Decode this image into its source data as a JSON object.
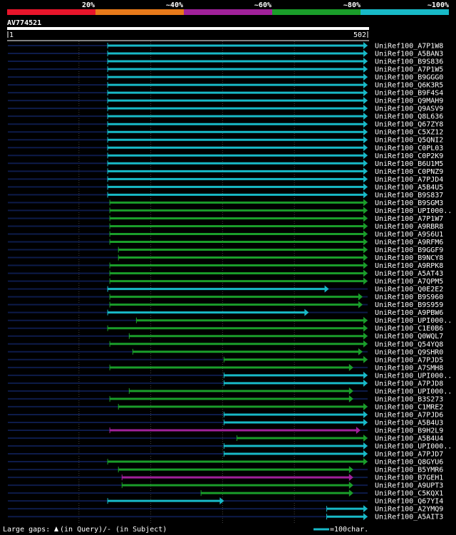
{
  "header": {
    "scale_labels": [
      "20%",
      "~40%",
      "~60%",
      "~80%",
      "~100%"
    ],
    "scale_colors": [
      "#e8152b",
      "#e87a1a",
      "#a0219a",
      "#1a9d2a",
      "#18b9c7"
    ],
    "query_name": "AV774521",
    "ruler_start": "1",
    "ruler_end": "502"
  },
  "query_length": 502,
  "hits": [
    {
      "name": "UniRef100_A7P1W8",
      "color": "#18b9c7",
      "start": 140,
      "end": 502
    },
    {
      "name": "UniRef100_A5BAN3",
      "color": "#18b9c7",
      "start": 140,
      "end": 502
    },
    {
      "name": "UniRef100_B9S836",
      "color": "#18b9c7",
      "start": 140,
      "end": 502
    },
    {
      "name": "UniRef100_A7P1W5",
      "color": "#18b9c7",
      "start": 140,
      "end": 502
    },
    {
      "name": "UniRef100_B9GGG0",
      "color": "#18b9c7",
      "start": 140,
      "end": 502
    },
    {
      "name": "UniRef100_Q6K3R5",
      "color": "#18b9c7",
      "start": 140,
      "end": 502
    },
    {
      "name": "UniRef100_B9F4S4",
      "color": "#18b9c7",
      "start": 140,
      "end": 502
    },
    {
      "name": "UniRef100_Q9MAH9",
      "color": "#18b9c7",
      "start": 140,
      "end": 502
    },
    {
      "name": "UniRef100_Q9ASV9",
      "color": "#18b9c7",
      "start": 140,
      "end": 502
    },
    {
      "name": "UniRef100_Q8L636",
      "color": "#18b9c7",
      "start": 140,
      "end": 502
    },
    {
      "name": "UniRef100_Q67ZY8",
      "color": "#18b9c7",
      "start": 140,
      "end": 502
    },
    {
      "name": "UniRef100_C5XZ12",
      "color": "#18b9c7",
      "start": 140,
      "end": 502
    },
    {
      "name": "UniRef100_Q5QNI2",
      "color": "#18b9c7",
      "start": 140,
      "end": 502
    },
    {
      "name": "UniRef100_C0PL03",
      "color": "#18b9c7",
      "start": 140,
      "end": 502
    },
    {
      "name": "UniRef100_C0P2K9",
      "color": "#18b9c7",
      "start": 140,
      "end": 502
    },
    {
      "name": "UniRef100_B6U1M5",
      "color": "#18b9c7",
      "start": 140,
      "end": 502
    },
    {
      "name": "UniRef100_C0PNZ9",
      "color": "#18b9c7",
      "start": 140,
      "end": 502
    },
    {
      "name": "UniRef100_A7PJD4",
      "color": "#18b9c7",
      "start": 140,
      "end": 502
    },
    {
      "name": "UniRef100_A5B4U5",
      "color": "#18b9c7",
      "start": 140,
      "end": 502
    },
    {
      "name": "UniRef100_B9S837",
      "color": "#18b9c7",
      "start": 140,
      "end": 502
    },
    {
      "name": "UniRef100_B9SGM3",
      "color": "#1a9d2a",
      "start": 143,
      "end": 502
    },
    {
      "name": "UniRef100_UPI000..",
      "color": "#1a9d2a",
      "start": 143,
      "end": 502
    },
    {
      "name": "UniRef100_A7P1W7",
      "color": "#1a9d2a",
      "start": 143,
      "end": 502
    },
    {
      "name": "UniRef100_A9RBR8",
      "color": "#1a9d2a",
      "start": 143,
      "end": 502
    },
    {
      "name": "UniRef100_A9S6U1",
      "color": "#1a9d2a",
      "start": 143,
      "end": 502
    },
    {
      "name": "UniRef100_A9RFM6",
      "color": "#1a9d2a",
      "start": 143,
      "end": 502
    },
    {
      "name": "UniRef100_B9GGF9",
      "color": "#1a9d2a",
      "start": 155,
      "end": 502
    },
    {
      "name": "UniRef100_B9NCY8",
      "color": "#1a9d2a",
      "start": 155,
      "end": 502
    },
    {
      "name": "UniRef100_A9RPK8",
      "color": "#1a9d2a",
      "start": 143,
      "end": 502
    },
    {
      "name": "UniRef100_A5AT43",
      "color": "#1a9d2a",
      "start": 143,
      "end": 502
    },
    {
      "name": "UniRef100_A7QPM5",
      "color": "#1a9d2a",
      "start": 143,
      "end": 502
    },
    {
      "name": "UniRef100_Q0E2E2",
      "color": "#18b9c7",
      "start": 140,
      "end": 448
    },
    {
      "name": "UniRef100_B9S960",
      "color": "#1a9d2a",
      "start": 143,
      "end": 495
    },
    {
      "name": "UniRef100_B9S959",
      "color": "#1a9d2a",
      "start": 143,
      "end": 495
    },
    {
      "name": "UniRef100_A9PBW6",
      "color": "#18b9c7",
      "start": 140,
      "end": 420
    },
    {
      "name": "UniRef100_UPI000..",
      "color": "#1a9d2a",
      "start": 180,
      "end": 502
    },
    {
      "name": "UniRef100_C1E0B6",
      "color": "#1a9d2a",
      "start": 140,
      "end": 502
    },
    {
      "name": "UniRef100_Q0WQL7",
      "color": "#1a9d2a",
      "start": 170,
      "end": 502
    },
    {
      "name": "UniRef100_Q54YQ8",
      "color": "#1a9d2a",
      "start": 143,
      "end": 502
    },
    {
      "name": "UniRef100_Q9SHR0",
      "color": "#1a9d2a",
      "start": 175,
      "end": 495
    },
    {
      "name": "UniRef100_A7PJD5",
      "color": "#1a9d2a",
      "start": 302,
      "end": 502
    },
    {
      "name": "UniRef100_A7SMH8",
      "color": "#1a9d2a",
      "start": 143,
      "end": 482
    },
    {
      "name": "UniRef100_UPI000..",
      "color": "#18b9c7",
      "start": 302,
      "end": 502
    },
    {
      "name": "UniRef100_A7PJD8",
      "color": "#18b9c7",
      "start": 302,
      "end": 502
    },
    {
      "name": "UniRef100_UPI000..",
      "color": "#1a9d2a",
      "start": 170,
      "end": 482
    },
    {
      "name": "UniRef100_B3S273",
      "color": "#1a9d2a",
      "start": 143,
      "end": 482
    },
    {
      "name": "UniRef100_C1MRE2",
      "color": "#1a9d2a",
      "start": 155,
      "end": 502
    },
    {
      "name": "UniRef100_A7PJD6",
      "color": "#18b9c7",
      "start": 302,
      "end": 502
    },
    {
      "name": "UniRef100_A5B4U3",
      "color": "#18b9c7",
      "start": 302,
      "end": 502
    },
    {
      "name": "UniRef100_B9H2L9",
      "color": "#a0219a",
      "start": 143,
      "end": 492
    },
    {
      "name": "UniRef100_A5B4U4",
      "color": "#1a9d2a",
      "start": 320,
      "end": 502
    },
    {
      "name": "UniRef100_UPI000..",
      "color": "#18b9c7",
      "start": 302,
      "end": 502
    },
    {
      "name": "UniRef100_A7PJD7",
      "color": "#18b9c7",
      "start": 302,
      "end": 502
    },
    {
      "name": "UniRef100_Q8GYU6",
      "color": "#1a9d2a",
      "start": 140,
      "end": 502
    },
    {
      "name": "UniRef100_B5YMR6",
      "color": "#1a9d2a",
      "start": 155,
      "end": 482
    },
    {
      "name": "UniRef100_B7GEH1",
      "color": "#a0219a",
      "start": 160,
      "end": 482
    },
    {
      "name": "UniRef100_A9UPT3",
      "color": "#1a9d2a",
      "start": 160,
      "end": 482
    },
    {
      "name": "UniRef100_C5KQX1",
      "color": "#1a9d2a",
      "start": 270,
      "end": 482
    },
    {
      "name": "UniRef100_Q67YI4",
      "color": "#18b9c7",
      "start": 140,
      "end": 302
    },
    {
      "name": "UniRef100_A2YMQ9",
      "color": "#18b9c7",
      "start": 445,
      "end": 502
    },
    {
      "name": "UniRef100_A5AIT3",
      "color": "#18b9c7",
      "start": 445,
      "end": 502
    }
  ],
  "footer": {
    "gaps_label": "Large gaps:",
    "query_gap": "(in Query)/",
    "subject_gap": "- (in Subject)",
    "scale_label": "=100char."
  }
}
